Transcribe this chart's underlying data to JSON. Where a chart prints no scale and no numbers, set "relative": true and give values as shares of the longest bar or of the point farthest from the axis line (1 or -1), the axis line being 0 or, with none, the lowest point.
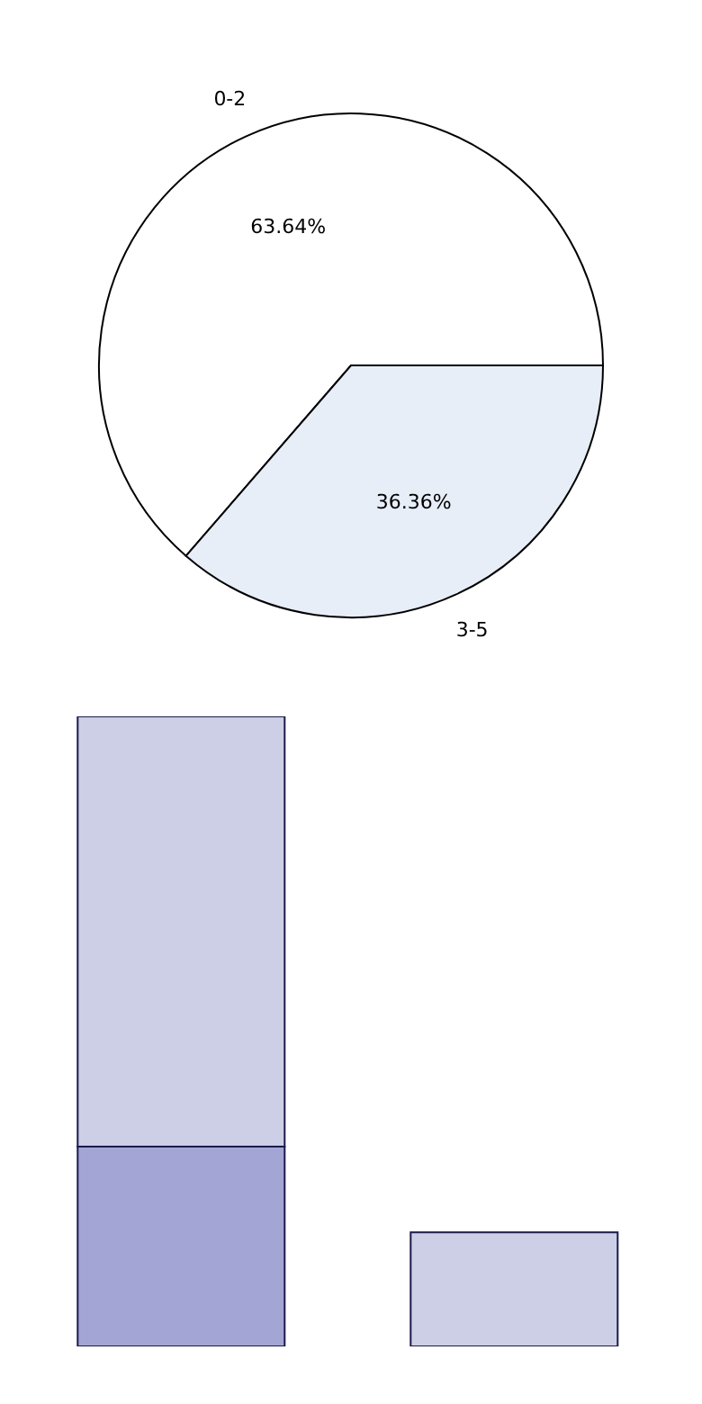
{
  "chart_data": [
    {
      "type": "pie",
      "categories": [
        "0-2",
        "3-5"
      ],
      "values": [
        63.64,
        36.36
      ],
      "colors": [
        "#ffffff",
        "#e8eef8"
      ],
      "value_labels": [
        "63.64%",
        "36.36%"
      ],
      "legend": false
    },
    {
      "type": "bar",
      "relative": true,
      "stacked": true,
      "categories": [
        null,
        null
      ],
      "legend": false,
      "grid": false,
      "series": [
        {
          "color": "#a3a6d4",
          "values": [
            0.317,
            null
          ]
        },
        {
          "color": "#cdcfe6",
          "values": [
            0.683,
            0.181
          ]
        }
      ]
    }
  ]
}
